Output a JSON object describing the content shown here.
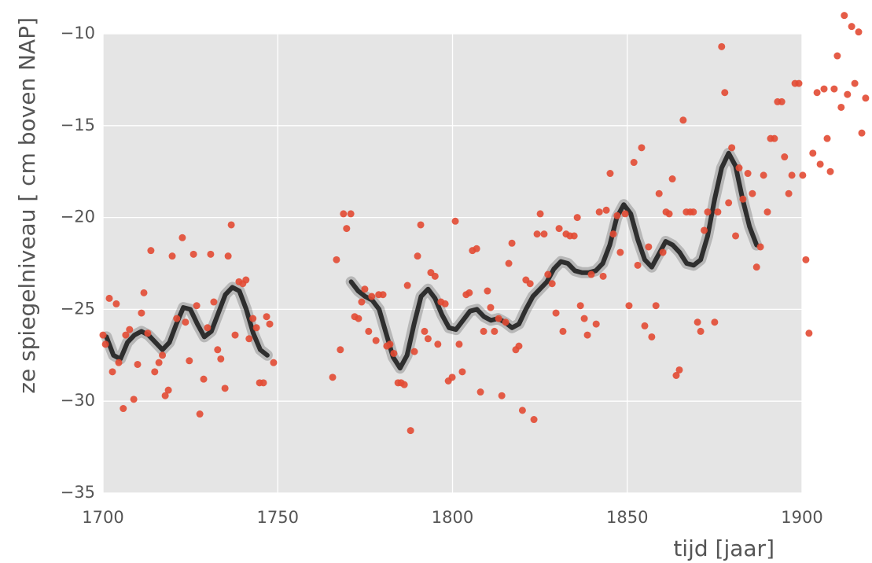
{
  "chart_data": {
    "type": "scatter",
    "x_label": "tijd [jaar]",
    "y_label": "ze  spiegelniveau [ cm boven NAP]",
    "xlim": [
      1700,
      1900
    ],
    "ylim": [
      -35,
      -10
    ],
    "xticks": [
      1700,
      1750,
      1800,
      1850,
      1900
    ],
    "yticks": [
      {
        "value": -35,
        "label": "−35"
      },
      {
        "value": -30,
        "label": "−30"
      },
      {
        "value": -25,
        "label": "−25"
      },
      {
        "value": -20,
        "label": "−20"
      },
      {
        "value": -15,
        "label": "−15"
      },
      {
        "value": -10,
        "label": "−10"
      }
    ],
    "grid": true,
    "background": "#e5e5e5",
    "color": "#e24a33",
    "x": [
      1700,
      1700.7,
      1701.8,
      1702.7,
      1703.8,
      1704.5,
      1705.8,
      1706.5,
      1707.6,
      1708.8,
      1709.9,
      1711,
      1711.7,
      1712.8,
      1713.7,
      1714.8,
      1716,
      1717,
      1717.8,
      1718.7,
      1719.8,
      1721.1,
      1722.7,
      1723.6,
      1724.7,
      1725.9,
      1726.8,
      1727.7,
      1728.8,
      1729.9,
      1730.8,
      1731.7,
      1732.8,
      1733.7,
      1734.9,
      1735.8,
      1736.7,
      1737.8,
      1738.9,
      1740,
      1740.9,
      1741.8,
      1742.9,
      1743.9,
      1744.8,
      1745.9,
      1746.8,
      1747.7,
      1748.8,
      1765.7,
      1766.8,
      1767.9,
      1768.8,
      1769.7,
      1770.9,
      1772,
      1773.1,
      1774,
      1774.9,
      1776,
      1776.9,
      1778.1,
      1778.9,
      1780.1,
      1781.2,
      1782.1,
      1783.2,
      1784.4,
      1785.3,
      1786.2,
      1787.1,
      1788,
      1789.1,
      1790,
      1790.9,
      1792,
      1793,
      1793.8,
      1795,
      1795.8,
      1796.7,
      1797.9,
      1798.8,
      1799.9,
      1800.8,
      1801.9,
      1802.8,
      1803.9,
      1804.8,
      1805.7,
      1806.9,
      1808,
      1808.9,
      1810,
      1810.9,
      1812,
      1813.2,
      1814.1,
      1815.2,
      1816.1,
      1817,
      1818.1,
      1819,
      1820,
      1821,
      1822.2,
      1823.3,
      1824.2,
      1825.1,
      1826.2,
      1827.3,
      1828.5,
      1829.6,
      1830.5,
      1831.6,
      1832.5,
      1833.6,
      1834.8,
      1835.7,
      1836.6,
      1837.7,
      1838.6,
      1839.7,
      1841.1,
      1842,
      1843.1,
      1844,
      1845.1,
      1846,
      1847.1,
      1848,
      1849.4,
      1850.5,
      1851.9,
      1853,
      1854.1,
      1855,
      1856.1,
      1857,
      1858.2,
      1859.1,
      1860.2,
      1861.1,
      1862,
      1862.9,
      1864,
      1864.9,
      1866,
      1866.9,
      1868,
      1868.9,
      1870.1,
      1871,
      1872,
      1873,
      1875,
      1875.9,
      1877,
      1877.9,
      1879,
      1879.9,
      1881,
      1882,
      1883.1,
      1884.5,
      1885.8,
      1887,
      1888.1,
      1889,
      1890.1,
      1891,
      1892.1,
      1893,
      1894.2,
      1895,
      1896.2,
      1897.1,
      1898,
      1899.1,
      1900.2,
      1901.1,
      1902,
      1903.1,
      1904.3,
      1905.2,
      1906.3,
      1907.2,
      1908.1,
      1909.2,
      1910.1,
      1911.2,
      1912.1,
      1913,
      1914.2,
      1915.1,
      1916.2,
      1917.1,
      1918.2
    ],
    "y": [
      -26.4,
      -26.9,
      -24.4,
      -28.4,
      -24.7,
      -27.9,
      -30.4,
      -26.4,
      -26.1,
      -29.9,
      -28,
      -25.2,
      -24.1,
      -26.3,
      -21.8,
      -28.4,
      -27.9,
      -27.5,
      -29.7,
      -29.4,
      -22.1,
      -25.5,
      -21.1,
      -25.7,
      -27.8,
      -22,
      -24.8,
      -30.7,
      -28.8,
      -26,
      -22,
      -24.6,
      -27.2,
      -27.7,
      -29.3,
      -22.1,
      -20.4,
      -26.4,
      -23.5,
      -23.6,
      -23.4,
      -26.6,
      -25.5,
      -26,
      -29,
      -29,
      -25.4,
      -25.8,
      -27.9,
      -28.7,
      -22.3,
      -27.2,
      -19.8,
      -20.6,
      -19.8,
      -25.4,
      -25.5,
      -24.6,
      -23.9,
      -26.2,
      -24.3,
      -26.7,
      -24.2,
      -24.2,
      -27,
      -26.9,
      -27.4,
      -29,
      -29,
      -29.1,
      -23.7,
      -31.6,
      -27.3,
      -22.1,
      -20.4,
      -26.2,
      -26.6,
      -23,
      -23.2,
      -26.9,
      -24.6,
      -24.7,
      -28.9,
      -28.7,
      -20.2,
      -26.9,
      -28.4,
      -24.2,
      -24.1,
      -21.8,
      -21.7,
      -29.5,
      -26.2,
      -24,
      -24.9,
      -26.2,
      -25.5,
      -29.7,
      -25.7,
      -22.5,
      -21.4,
      -27.2,
      -27,
      -30.5,
      -23.4,
      -23.6,
      -31,
      -20.9,
      -19.8,
      -20.9,
      -23.1,
      -23.6,
      -25.2,
      -20.6,
      -26.2,
      -20.9,
      -21,
      -21,
      -20,
      -24.8,
      -25.5,
      -26.4,
      -23.1,
      -25.8,
      -19.7,
      -23.2,
      -19.6,
      -17.6,
      -20.9,
      -19.9,
      -21.9,
      -19.8,
      -24.8,
      -17,
      -22.6,
      -16.2,
      -25.9,
      -21.6,
      -26.5,
      -24.8,
      -18.7,
      -21.9,
      -19.7,
      -19.8,
      -17.9,
      -28.6,
      -28.3,
      -14.7,
      -19.7,
      -19.7,
      -19.7,
      -25.7,
      -26.2,
      -20.7,
      -19.7,
      -25.7,
      -19.7,
      -10.7,
      -13.2,
      -19.2,
      -16.2,
      -21,
      -17.3,
      -19,
      -17.6,
      -18.7,
      -22.7,
      -21.6,
      -17.7,
      -19.7,
      -15.7,
      -15.7,
      -13.7,
      -13.7,
      -16.7,
      -18.7,
      -17.7,
      -12.7,
      -12.7,
      -17.7,
      -22.3,
      -26.3,
      -16.5,
      -13.2,
      -17.1,
      -13,
      -15.7,
      -17.5,
      -13,
      -11.2,
      -14,
      -9,
      -13.3,
      -9.6,
      -12.7,
      -9.9,
      -15.4,
      -13.5
    ],
    "trend": {
      "color": "#000000",
      "x": [
        1701,
        1703,
        1705,
        1707,
        1709,
        1711,
        1713,
        1715,
        1717,
        1719,
        1721,
        1723,
        1725,
        1727,
        1729,
        1731,
        1733,
        1735,
        1737,
        1739,
        1741,
        1743,
        1745,
        1747,
        1760,
        1771,
        1773,
        1775,
        1777,
        1779,
        1781,
        1783,
        1785,
        1787,
        1789,
        1791,
        1793,
        1795,
        1797,
        1799,
        1801,
        1803,
        1805,
        1807,
        1809,
        1811,
        1813,
        1815,
        1817,
        1819,
        1821,
        1823,
        1825,
        1827,
        1829,
        1831,
        1833,
        1835,
        1837,
        1839,
        1841,
        1843,
        1845,
        1847,
        1849,
        1851,
        1853,
        1855,
        1857,
        1859,
        1861,
        1863,
        1865,
        1867,
        1869,
        1871,
        1873,
        1875,
        1877,
        1879,
        1881,
        1883,
        1885,
        1887
      ],
      "y": [
        -26.5,
        -27.5,
        -27.7,
        -26.8,
        -26.4,
        -26.2,
        -26.4,
        -26.8,
        -27.2,
        -26.8,
        -25.8,
        -24.9,
        -25,
        -25.8,
        -26.5,
        -26.2,
        -25.2,
        -24.2,
        -23.8,
        -24,
        -25,
        -26.3,
        -27.2,
        -27.5,
        null,
        -23.5,
        -24,
        -24.3,
        -24.5,
        -25,
        -26.3,
        -27.6,
        -28.2,
        -27.5,
        -25.8,
        -24.3,
        -23.9,
        -24.4,
        -25.3,
        -26,
        -26.1,
        -25.6,
        -25.1,
        -25,
        -25.4,
        -25.6,
        -25.5,
        -25.7,
        -26,
        -25.8,
        -25,
        -24.3,
        -23.9,
        -23.5,
        -22.8,
        -22.4,
        -22.5,
        -22.9,
        -23,
        -23,
        -22.9,
        -22.5,
        -21.5,
        -20,
        -19.3,
        -19.8,
        -21.2,
        -22.3,
        -22.7,
        -22,
        -21.3,
        -21.5,
        -21.9,
        -22.5,
        -22.6,
        -22.3,
        -21,
        -19,
        -17.3,
        -16.5,
        -17.2,
        -19,
        -20.5,
        -21.5
      ]
    }
  }
}
